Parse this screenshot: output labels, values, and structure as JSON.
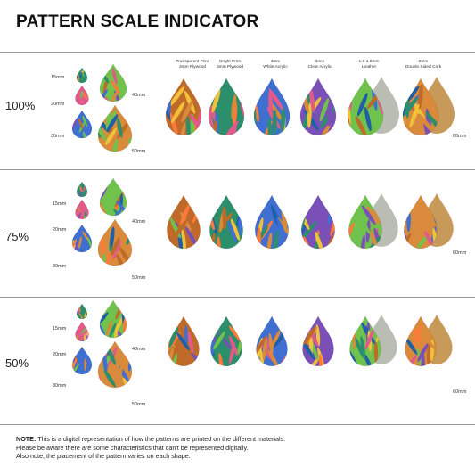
{
  "title": "PATTERN SCALE INDICATOR",
  "sizes": [
    "15mm",
    "20mm",
    "30mm",
    "40mm",
    "50mm"
  ],
  "materials": [
    {
      "line1": "Transparent Print",
      "line2": "3mm Plywood"
    },
    {
      "line1": "Bright Print",
      "line2": "3mm Plywood"
    },
    {
      "line1": "3mm",
      "line2": "White Acrylic"
    },
    {
      "line1": "3mm",
      "line2": "Clear Acrylic"
    },
    {
      "line1": "1.6-1.8mm",
      "line2": "Leather"
    },
    {
      "line1": "2mm",
      "line2": "Double Sided Cork"
    }
  ],
  "size_60": "60mm",
  "rows": [
    {
      "scale": "100%"
    },
    {
      "scale": "75%"
    },
    {
      "scale": "50%"
    }
  ],
  "note": {
    "bold": "NOTE:",
    "line1": " This is a digital representation of how the patterns are printed on the different materials.",
    "line2": "Please be aware there are some characteristics that can't be represented digitally.",
    "line3": "Also note, the placement of the pattern varies on each shape."
  },
  "colors": {
    "divider": "#9a9a9a",
    "text": "#222222",
    "pattern_bg": [
      "#2a8f6a",
      "#d98a3a",
      "#3f6fd0",
      "#e15a8a",
      "#6fc24b",
      "#c06a2a"
    ]
  }
}
